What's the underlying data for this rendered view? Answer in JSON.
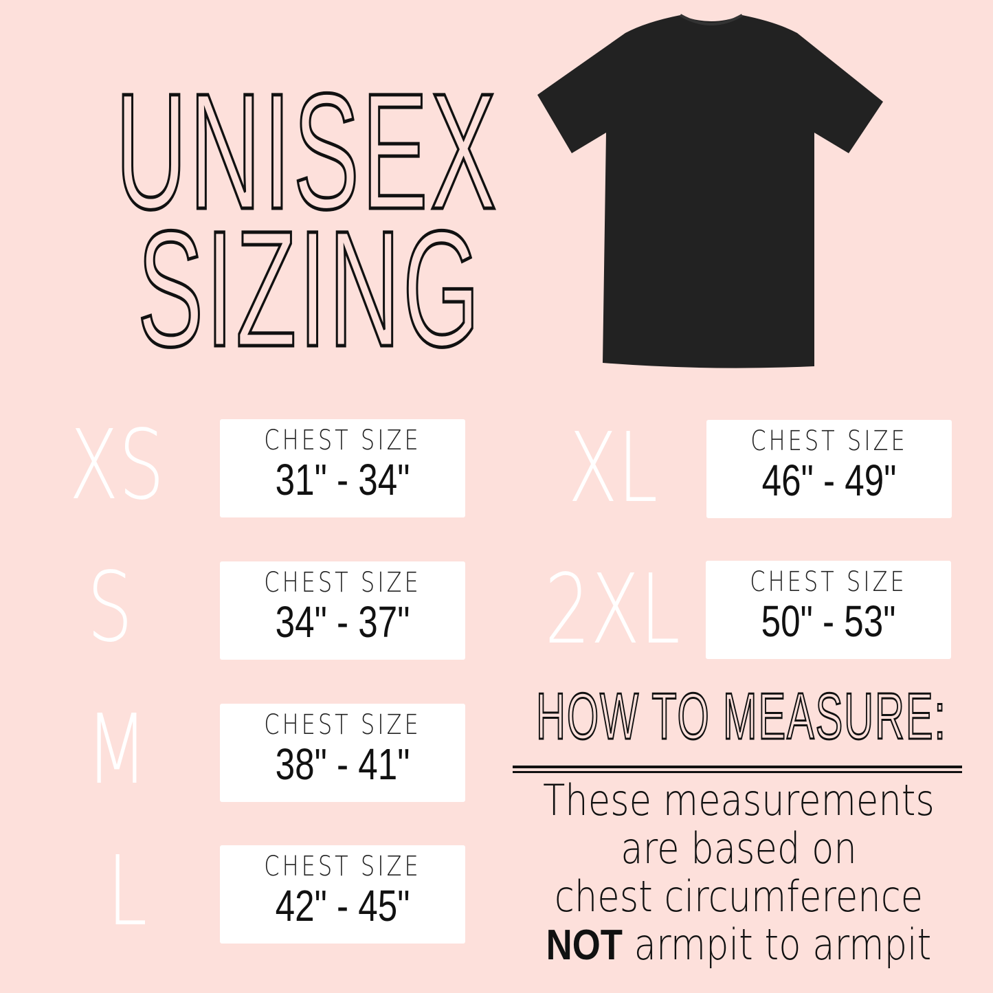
{
  "title": {
    "line1": "UNISEX",
    "line2": "SIZING"
  },
  "sizes": [
    {
      "label": "XS",
      "chest_label": "CHEST SIZE",
      "range": "31\" - 34\""
    },
    {
      "label": "S",
      "chest_label": "CHEST SIZE",
      "range": "34\" - 37\""
    },
    {
      "label": "M",
      "chest_label": "CHEST SIZE",
      "range": "38\" - 41\""
    },
    {
      "label": "L",
      "chest_label": "CHEST SIZE",
      "range": "42\" - 45\""
    },
    {
      "label": "XL",
      "chest_label": "CHEST SIZE",
      "range": "46\" - 49\""
    },
    {
      "label": "2XL",
      "chest_label": "CHEST SIZE",
      "range": "50\" - 53\""
    }
  ],
  "measure": {
    "heading": "HOW TO MEASURE:",
    "line1": "These measurements",
    "line2": "are based on",
    "line3": "chest circumference",
    "emphasis": "NOT",
    "line4": "armpit to armpit"
  },
  "colors": {
    "background": "#fde0db",
    "shirt": "#222222",
    "card": "#ffffff"
  }
}
